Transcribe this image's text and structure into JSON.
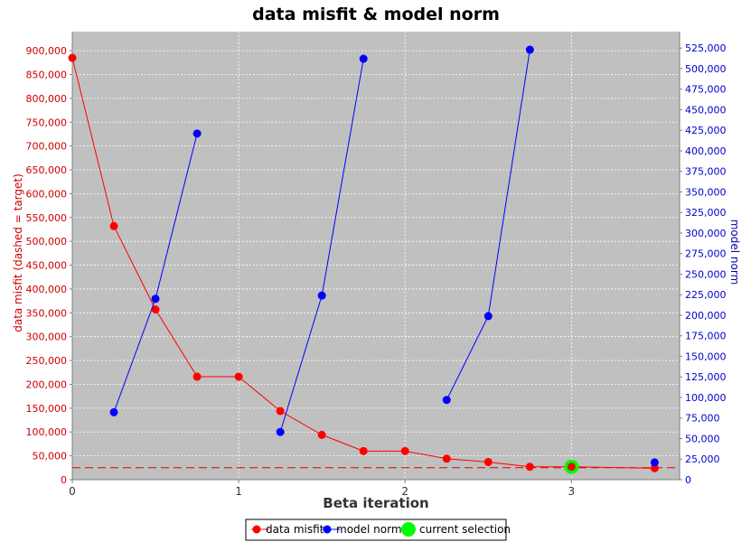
{
  "chart_data": {
    "type": "line",
    "title": "data misfit & model norm",
    "xlabel": "Beta iteration",
    "ylabel_left": "data misfit (dashed = target)",
    "ylabel_right": "model norm",
    "xlim": [
      0,
      3.65
    ],
    "ylim_left": [
      0,
      940000
    ],
    "ylim_right": [
      0,
      545000
    ],
    "x_ticks": [
      0,
      1,
      2,
      3
    ],
    "y_ticks_left": [
      0,
      50000,
      100000,
      150000,
      200000,
      250000,
      300000,
      350000,
      400000,
      450000,
      500000,
      550000,
      600000,
      650000,
      700000,
      750000,
      800000,
      850000,
      900000
    ],
    "y_ticks_right": [
      0,
      25000,
      50000,
      75000,
      100000,
      125000,
      150000,
      175000,
      200000,
      225000,
      250000,
      275000,
      300000,
      325000,
      350000,
      375000,
      400000,
      425000,
      450000,
      475000,
      500000,
      525000
    ],
    "target_misfit": 25000,
    "grid": true,
    "legend_position": "bottom",
    "series": [
      {
        "name": "data misfit",
        "axis": "left",
        "color": "#ff0000",
        "x": [
          0,
          0.25,
          0.5,
          0.75,
          1.0,
          1.25,
          1.5,
          1.75,
          2.0,
          2.25,
          2.5,
          2.75,
          3.0,
          3.5
        ],
        "y": [
          885000,
          532000,
          357000,
          216000,
          216000,
          144000,
          94000,
          60000,
          60000,
          44000,
          37000,
          27000,
          27000,
          24000
        ]
      },
      {
        "name": "model norm",
        "axis": "right",
        "color": "#0000ff",
        "segments": [
          {
            "x": [
              0.25,
              0.5,
              0.75
            ],
            "y": [
              82000,
              220000,
              421000
            ]
          },
          {
            "x": [
              1.25,
              1.5,
              1.75
            ],
            "y": [
              58000,
              224000,
              512000
            ]
          },
          {
            "x": [
              2.25,
              2.5,
              2.75
            ],
            "y": [
              97000,
              199000,
              523000
            ]
          },
          {
            "x": [
              3.5
            ],
            "y": [
              21000
            ]
          }
        ]
      },
      {
        "name": "current selection",
        "axis": "left",
        "color": "#00ff00",
        "x": [
          3.0
        ],
        "y": [
          27000
        ]
      }
    ]
  }
}
